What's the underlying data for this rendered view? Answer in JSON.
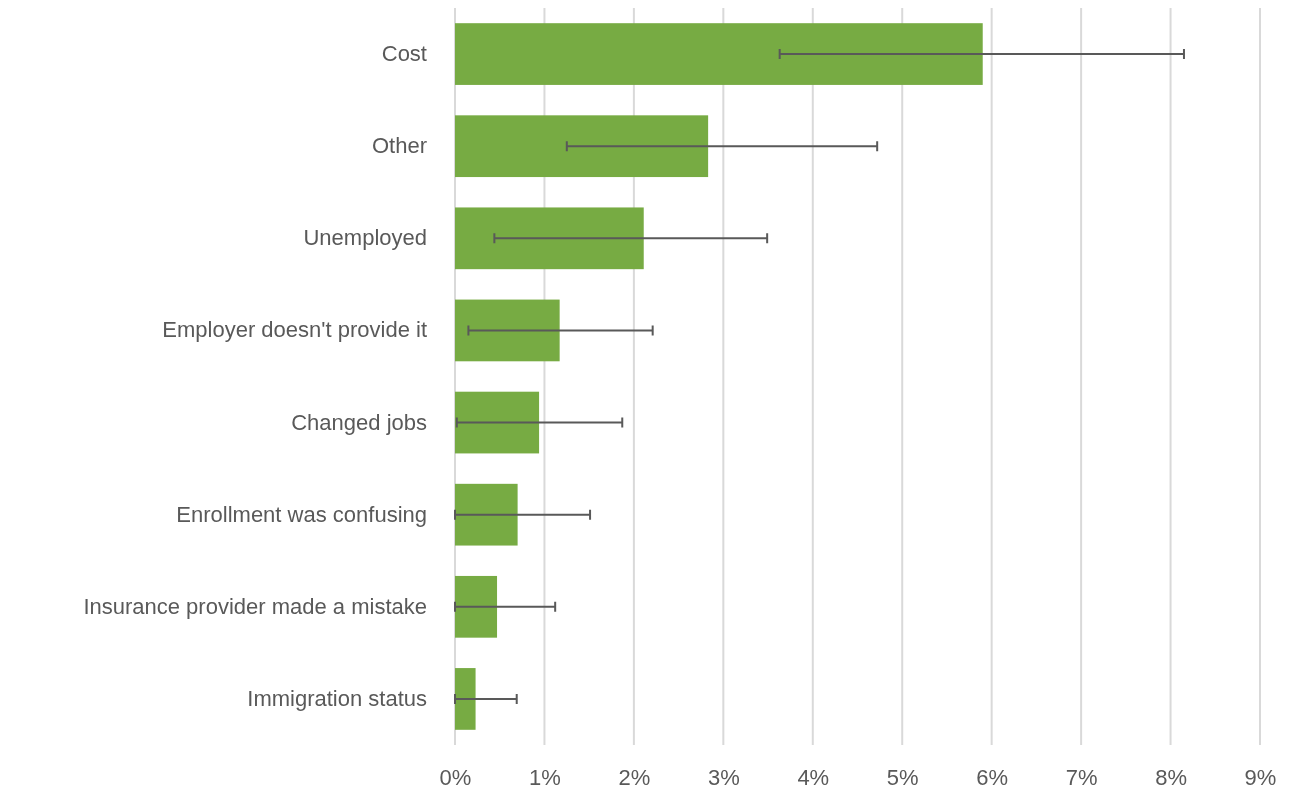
{
  "chart_data": {
    "type": "bar",
    "orientation": "horizontal",
    "categories": [
      "Cost",
      "Other",
      "Unemployed",
      "Employer doesn't provide it",
      "Changed jobs",
      "Enrollment was confusing",
      "Insurance provider made a mistake",
      "Immigration status"
    ],
    "values": [
      5.9,
      2.83,
      2.11,
      1.17,
      0.94,
      0.7,
      0.47,
      0.23
    ],
    "errors": [
      [
        3.63,
        8.15
      ],
      [
        1.25,
        4.72
      ],
      [
        0.44,
        3.49
      ],
      [
        0.15,
        2.21
      ],
      [
        0.02,
        1.87
      ],
      [
        0,
        1.51
      ],
      [
        0,
        1.12
      ],
      [
        0,
        0.69
      ]
    ],
    "color": "#77ab43",
    "xlim": [
      0,
      9
    ],
    "xticks": [
      {
        "value": 0,
        "label": "0%"
      },
      {
        "value": 1,
        "label": "1%"
      },
      {
        "value": 2,
        "label": "2%"
      },
      {
        "value": 3,
        "label": "3%"
      },
      {
        "value": 4,
        "label": "4%"
      },
      {
        "value": 5,
        "label": "5%"
      },
      {
        "value": 6,
        "label": "6%"
      },
      {
        "value": 7,
        "label": "7%"
      },
      {
        "value": 8,
        "label": "8%"
      },
      {
        "value": 9,
        "label": "9%"
      }
    ],
    "grid": "x"
  }
}
